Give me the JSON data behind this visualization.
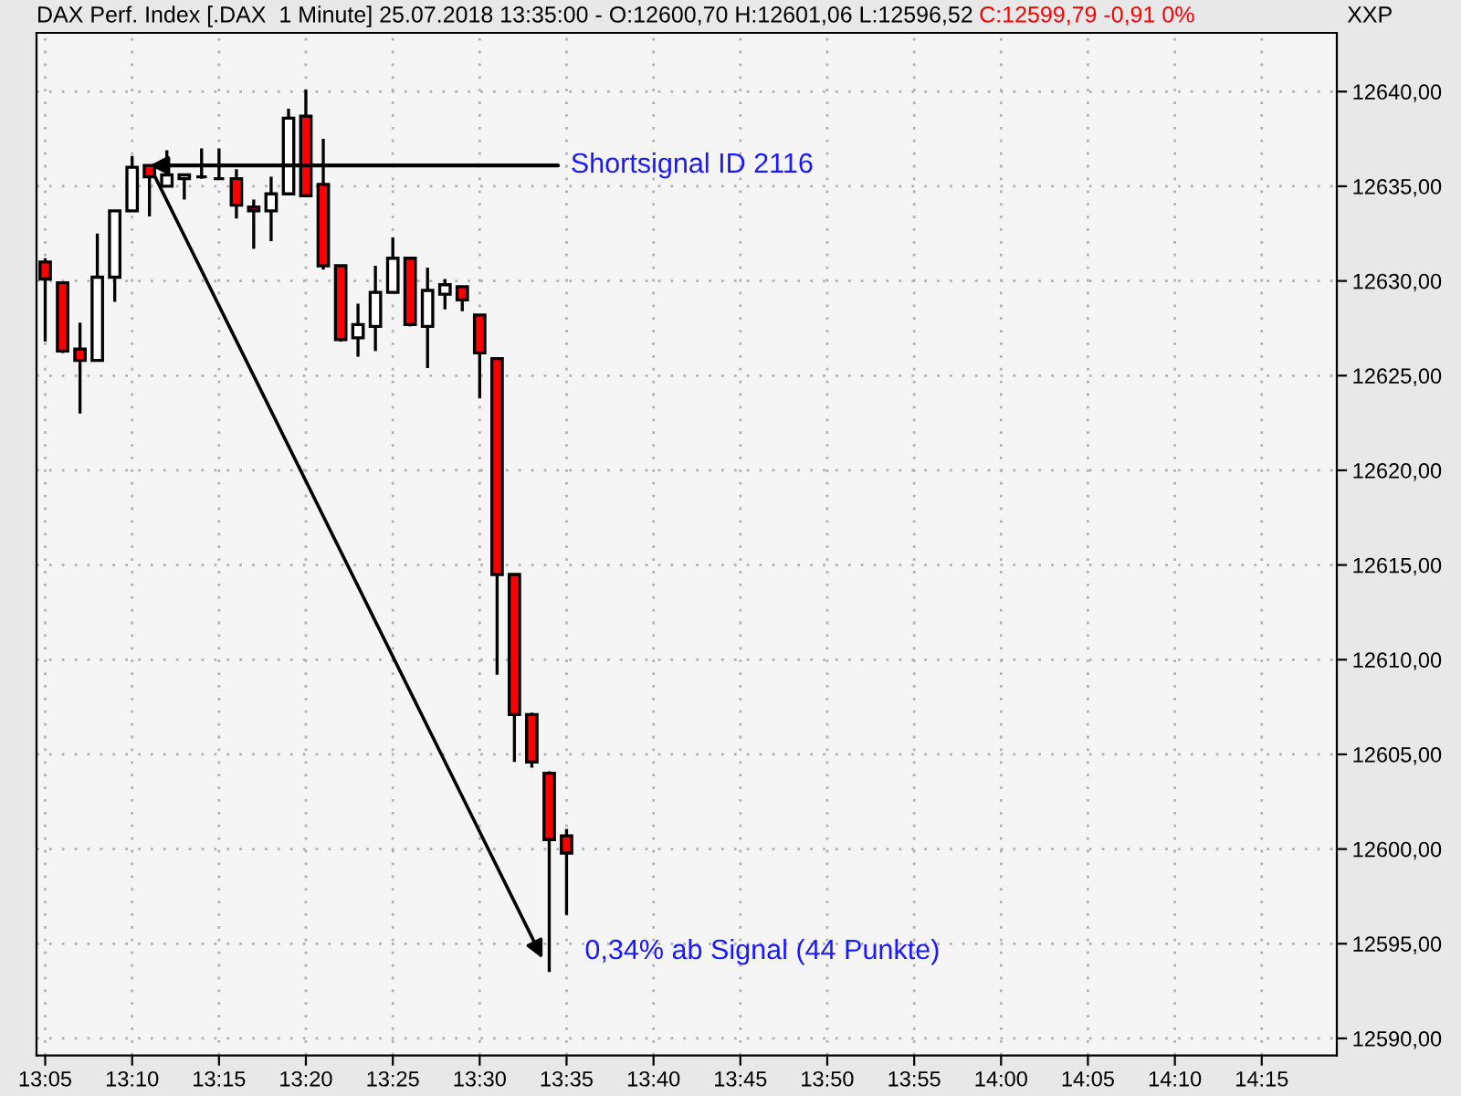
{
  "chart_data": {
    "type": "candlestick",
    "title": "DAX Perf. Index [.DAX  1 Minute] 25.07.2018 13:35:00 - O:12600,70 H:12601,06 L:12596,52",
    "subtitle": "C:12599,79 -0,91 0%",
    "x": [
      13.0833,
      13.1,
      13.1167,
      13.1333,
      13.15,
      13.1667,
      13.1833,
      13.2,
      13.2167,
      13.2333,
      13.25,
      13.2667,
      13.2833,
      13.3,
      13.3167,
      13.3333,
      13.35,
      13.3667,
      13.3833,
      13.4,
      13.4167,
      13.4333,
      13.45,
      13.4667,
      13.4833,
      13.5,
      13.5167,
      13.5333,
      13.55,
      13.5667,
      13.5833
    ],
    "ohlc": [
      [
        12631.0,
        12631.2,
        12626.8,
        12630.1
      ],
      [
        12629.9,
        12629.9,
        12626.2,
        12626.3
      ],
      [
        12626.4,
        12627.8,
        12623.0,
        12625.8
      ],
      [
        12625.8,
        12632.5,
        12625.8,
        12630.2
      ],
      [
        12630.2,
        12633.7,
        12628.9,
        12633.7
      ],
      [
        12633.7,
        12636.6,
        12633.7,
        12636.0
      ],
      [
        12636.1,
        12636.1,
        12633.4,
        12635.5
      ],
      [
        12635.0,
        12636.9,
        12635.0,
        12635.6
      ],
      [
        12635.4,
        12635.6,
        12634.3,
        12635.6
      ],
      [
        12635.5,
        12637.0,
        12635.4,
        12635.5
      ],
      [
        12635.4,
        12637.0,
        12635.4,
        12635.4
      ],
      [
        12635.4,
        12635.9,
        12633.3,
        12634.0
      ],
      [
        12633.9,
        12634.3,
        12631.7,
        12633.7
      ],
      [
        12633.7,
        12635.5,
        12632.1,
        12634.6
      ],
      [
        12634.6,
        12639.1,
        12634.6,
        12638.6
      ],
      [
        12638.7,
        12640.1,
        12634.5,
        12634.5
      ],
      [
        12635.1,
        12637.5,
        12630.6,
        12630.8
      ],
      [
        12630.8,
        12630.8,
        12626.8,
        12626.9
      ],
      [
        12627.0,
        12628.8,
        12626.0,
        12627.7
      ],
      [
        12627.6,
        12630.8,
        12626.3,
        12629.4
      ],
      [
        12629.4,
        12632.3,
        12629.4,
        12631.2
      ],
      [
        12631.2,
        12631.2,
        12627.6,
        12627.7
      ],
      [
        12627.6,
        12630.7,
        12625.4,
        12629.5
      ],
      [
        12629.3,
        12630.1,
        12628.5,
        12629.8
      ],
      [
        12629.7,
        12629.7,
        12628.4,
        12629.0
      ],
      [
        12628.2,
        12628.2,
        12623.8,
        12626.2
      ],
      [
        12625.9,
        12625.9,
        12609.2,
        12614.5
      ],
      [
        12614.5,
        12614.5,
        12604.6,
        12607.1
      ],
      [
        12607.1,
        12607.2,
        12604.3,
        12604.6
      ],
      [
        12604.0,
        12604.1,
        12593.5,
        12600.5
      ],
      [
        12600.7,
        12601.06,
        12596.52,
        12599.79
      ]
    ],
    "colors": [
      "#ff0000",
      "#ff0000",
      "#ff0000",
      "#ffffff",
      "#ffffff",
      "#ffffff",
      "#ff0000",
      "#ffffff",
      "#ffffff",
      "#000000",
      "#000000",
      "#ff0000",
      "#ff0000",
      "#ffffff",
      "#ffffff",
      "#ff0000",
      "#ff0000",
      "#ff0000",
      "#ffffff",
      "#ffffff",
      "#ffffff",
      "#ff0000",
      "#ffffff",
      "#ffffff",
      "#ff0000",
      "#ff0000",
      "#ff0000",
      "#ff0000",
      "#ff0000",
      "#ff0000",
      "#ff0000"
    ],
    "xlim": [
      13.075,
      14.322
    ],
    "xticks": [
      {
        "value": 13.0833,
        "label": "13:05"
      },
      {
        "value": 13.1667,
        "label": "13:10"
      },
      {
        "value": 13.25,
        "label": "13:15"
      },
      {
        "value": 13.3333,
        "label": "13:20"
      },
      {
        "value": 13.4167,
        "label": "13:25"
      },
      {
        "value": 13.5,
        "label": "13:30"
      },
      {
        "value": 13.5833,
        "label": "13:35"
      },
      {
        "value": 13.6667,
        "label": "13:40"
      },
      {
        "value": 13.75,
        "label": "13:45"
      },
      {
        "value": 13.8333,
        "label": "13:50"
      },
      {
        "value": 13.9167,
        "label": "13:55"
      },
      {
        "value": 14.0,
        "label": "14:00"
      },
      {
        "value": 14.0833,
        "label": "14:05"
      },
      {
        "value": 14.1667,
        "label": "14:10"
      },
      {
        "value": 14.25,
        "label": "14:15"
      }
    ],
    "ylim": [
      12589.1,
      12643.1
    ],
    "yticks": [
      {
        "value": 12590,
        "label": "12590,00"
      },
      {
        "value": 12595,
        "label": "12595,00"
      },
      {
        "value": 12600,
        "label": "12600,00"
      },
      {
        "value": 12605,
        "label": "12605,00"
      },
      {
        "value": 12610,
        "label": "12610,00"
      },
      {
        "value": 12615,
        "label": "12615,00"
      },
      {
        "value": 12620,
        "label": "12620,00"
      },
      {
        "value": 12625,
        "label": "12625,00"
      },
      {
        "value": 12630,
        "label": "12630,00"
      },
      {
        "value": 12635,
        "label": "12635,00"
      },
      {
        "value": 12640,
        "label": "12640,00"
      }
    ],
    "grid": true,
    "annotations": [
      {
        "text": "Shortsignal ID 2116",
        "x": 13.1833,
        "y": 12636.1
      },
      {
        "text": "0,34% ab Signal (44 Punkte)",
        "x": 13.5667,
        "y": 12593.5
      },
      "XXP"
    ]
  }
}
